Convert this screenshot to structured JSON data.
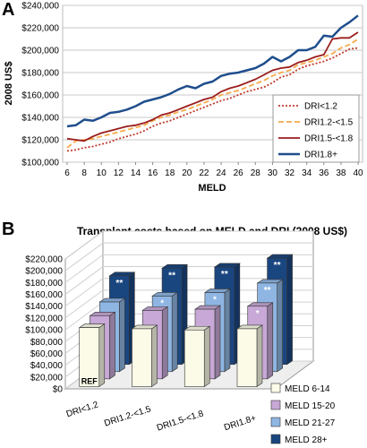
{
  "panels": {
    "a_label": "A",
    "b_label": "B"
  },
  "chart_data": [
    {
      "type": "line",
      "ylabel": "2008 US$",
      "xlabel": "MELD",
      "ylim": [
        100000,
        240000
      ],
      "y_ticks": [
        "$100,000",
        "$120,000",
        "$140,000",
        "$160,000",
        "$180,000",
        "$200,000",
        "$220,000",
        "$240,000"
      ],
      "x": [
        6,
        7,
        8,
        9,
        10,
        11,
        12,
        13,
        14,
        15,
        16,
        17,
        18,
        19,
        20,
        21,
        22,
        23,
        24,
        25,
        26,
        27,
        28,
        29,
        30,
        31,
        32,
        33,
        34,
        35,
        36,
        37,
        38,
        39,
        40
      ],
      "x_ticks": [
        "6",
        "8",
        "10",
        "12",
        "14",
        "16",
        "18",
        "20",
        "22",
        "24",
        "26",
        "28",
        "30",
        "32",
        "34",
        "36",
        "38",
        "40"
      ],
      "grid": "horizontal",
      "legend_position": "right-inside",
      "series": [
        {
          "name": "DRI<1.2",
          "color": "#c0392b",
          "style": "dotted",
          "values": [
            110000,
            111000,
            113000,
            114000,
            116000,
            118000,
            121000,
            123000,
            125000,
            128000,
            132000,
            135000,
            137000,
            140000,
            143000,
            146000,
            149000,
            152000,
            155000,
            157000,
            160000,
            163000,
            165000,
            167000,
            171000,
            176000,
            178000,
            183000,
            186000,
            188000,
            190000,
            193000,
            197000,
            201000,
            202000
          ]
        },
        {
          "name": "DRI1.2-<1.5",
          "color": "#f5a94a",
          "style": "dashed",
          "values": [
            113000,
            119000,
            120000,
            121000,
            123000,
            125000,
            127000,
            129000,
            131000,
            133000,
            137000,
            140000,
            142000,
            145000,
            147000,
            150000,
            153000,
            156000,
            160000,
            162000,
            164000,
            167000,
            170000,
            173000,
            177000,
            180000,
            182000,
            187000,
            189000,
            191000,
            194000,
            197000,
            202000,
            205000,
            210000
          ]
        },
        {
          "name": "DRI1.5-<1.8",
          "color": "#9b1c1c",
          "style": "solid",
          "values": [
            121000,
            120000,
            119000,
            123000,
            126000,
            128000,
            130000,
            132000,
            133000,
            135000,
            138000,
            142000,
            144000,
            147000,
            150000,
            153000,
            156000,
            158000,
            163000,
            166000,
            168000,
            171000,
            174000,
            178000,
            182000,
            184000,
            185000,
            189000,
            191000,
            194000,
            196000,
            210000,
            211000,
            211000,
            216000
          ]
        },
        {
          "name": "DRI1.8+",
          "color": "#1f4e8c",
          "style": "solid",
          "values": [
            132000,
            133000,
            138000,
            137000,
            140000,
            144000,
            145000,
            147000,
            150000,
            154000,
            156000,
            158000,
            161000,
            165000,
            168000,
            166000,
            170000,
            172000,
            177000,
            179000,
            180000,
            182000,
            184000,
            188000,
            194000,
            190000,
            194000,
            200000,
            200000,
            203000,
            213000,
            212000,
            220000,
            225000,
            231000
          ]
        }
      ]
    },
    {
      "type": "bar",
      "title": "Transplant costs based on MELD and DRI (2008 US$)",
      "ylim": [
        0,
        220000
      ],
      "y_ticks": [
        "$0",
        "$20,000",
        "$40,000",
        "$60,000",
        "$80,000",
        "$100,000",
        "$120,000",
        "$140,000",
        "$160,000",
        "$180,000",
        "$200,000",
        "$220,000"
      ],
      "categories": [
        "DRI<1.2",
        "DRI1.2-<1.5",
        "DRI1.5-<1.8",
        "DRI1.8+"
      ],
      "legend_position": "bottom-right",
      "reference_label": "REF",
      "series": [
        {
          "name": "MELD 28+",
          "color": "#1a4680",
          "values": [
            150000,
            163000,
            165000,
            180000
          ],
          "annotations": [
            "**",
            "**",
            "**",
            "**"
          ]
        },
        {
          "name": "MELD 21-27",
          "color": "#8fb6e3",
          "values": [
            118000,
            128000,
            134000,
            150000
          ],
          "annotations": [
            "",
            "*",
            "*",
            "**"
          ]
        },
        {
          "name": "MELD 15-20",
          "color": "#c7a8d6",
          "values": [
            107000,
            116000,
            118000,
            123000
          ],
          "annotations": [
            "",
            "",
            "",
            "*"
          ]
        },
        {
          "name": "MELD 6-14",
          "color": "#fbfbe8",
          "values": [
            100000,
            98000,
            96000,
            98000
          ],
          "annotations": [
            "REF",
            "",
            "",
            ""
          ]
        }
      ]
    }
  ]
}
